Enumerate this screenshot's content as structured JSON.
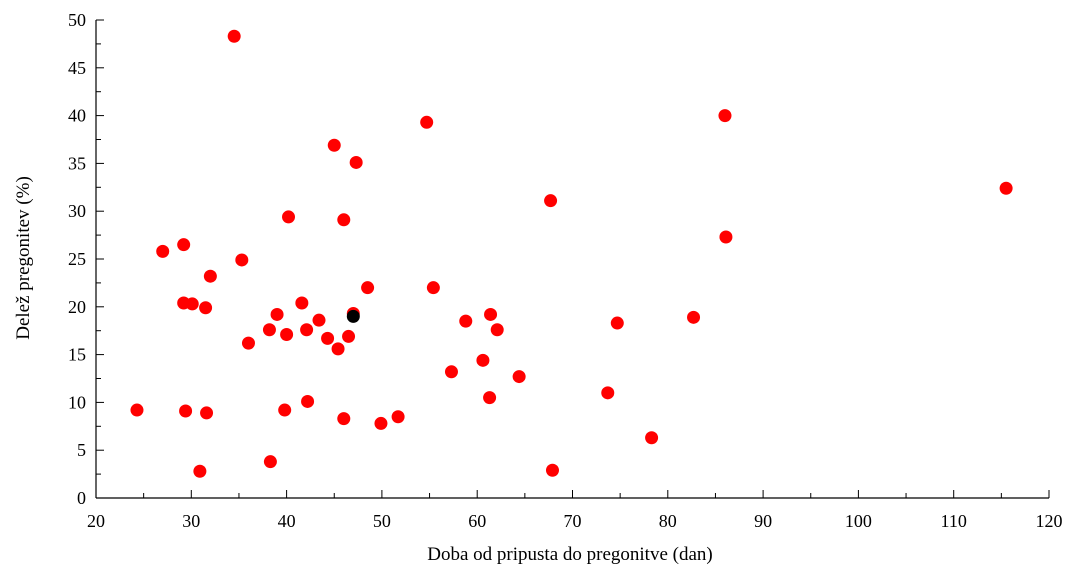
{
  "chart_data": {
    "type": "scatter",
    "title": "",
    "xlabel": "Doba od pripusta do pregonitve (dan)",
    "ylabel": "Delež pregonitev (%)",
    "xlim": [
      20,
      120
    ],
    "ylim": [
      0,
      50
    ],
    "xticks": [
      20,
      30,
      40,
      50,
      60,
      70,
      80,
      90,
      100,
      110,
      120
    ],
    "yticks": [
      0,
      5,
      10,
      15,
      20,
      25,
      30,
      35,
      40,
      45,
      50
    ],
    "grid": false,
    "legend": "none",
    "series": [
      {
        "color": "#ff0000",
        "points": [
          [
            34.5,
            48.3
          ],
          [
            86,
            40
          ],
          [
            54.7,
            39.3
          ],
          [
            45,
            36.9
          ],
          [
            47.3,
            35.1
          ],
          [
            115.5,
            32.4
          ],
          [
            67.7,
            31.1
          ],
          [
            40.2,
            29.4
          ],
          [
            46,
            29.1
          ],
          [
            86.1,
            27.3
          ],
          [
            29.2,
            26.5
          ],
          [
            27,
            25.8
          ],
          [
            35.3,
            24.9
          ],
          [
            32,
            23.2
          ],
          [
            48.5,
            22
          ],
          [
            55.4,
            22
          ],
          [
            29.2,
            20.4
          ],
          [
            30.1,
            20.3
          ],
          [
            41.6,
            20.4
          ],
          [
            31.5,
            19.9
          ],
          [
            39,
            19.2
          ],
          [
            47,
            19.3
          ],
          [
            61.4,
            19.2
          ],
          [
            82.7,
            18.9
          ],
          [
            58.8,
            18.5
          ],
          [
            43.4,
            18.6
          ],
          [
            74.7,
            18.3
          ],
          [
            38.2,
            17.6
          ],
          [
            42.1,
            17.6
          ],
          [
            62.1,
            17.6
          ],
          [
            40,
            17.1
          ],
          [
            46.5,
            16.9
          ],
          [
            44.3,
            16.7
          ],
          [
            36,
            16.2
          ],
          [
            45.4,
            15.6
          ],
          [
            60.6,
            14.4
          ],
          [
            57.3,
            13.2
          ],
          [
            64.4,
            12.7
          ],
          [
            73.7,
            11
          ],
          [
            61.3,
            10.5
          ],
          [
            42.2,
            10.1
          ],
          [
            24.3,
            9.2
          ],
          [
            29.4,
            9.1
          ],
          [
            39.8,
            9.2
          ],
          [
            31.6,
            8.9
          ],
          [
            51.7,
            8.5
          ],
          [
            46,
            8.3
          ],
          [
            49.9,
            7.8
          ],
          [
            78.3,
            6.3
          ],
          [
            38.3,
            3.8
          ],
          [
            30.9,
            2.8
          ],
          [
            67.9,
            2.9
          ]
        ]
      },
      {
        "color": "#000000",
        "points": [
          [
            47,
            19
          ]
        ]
      }
    ]
  }
}
